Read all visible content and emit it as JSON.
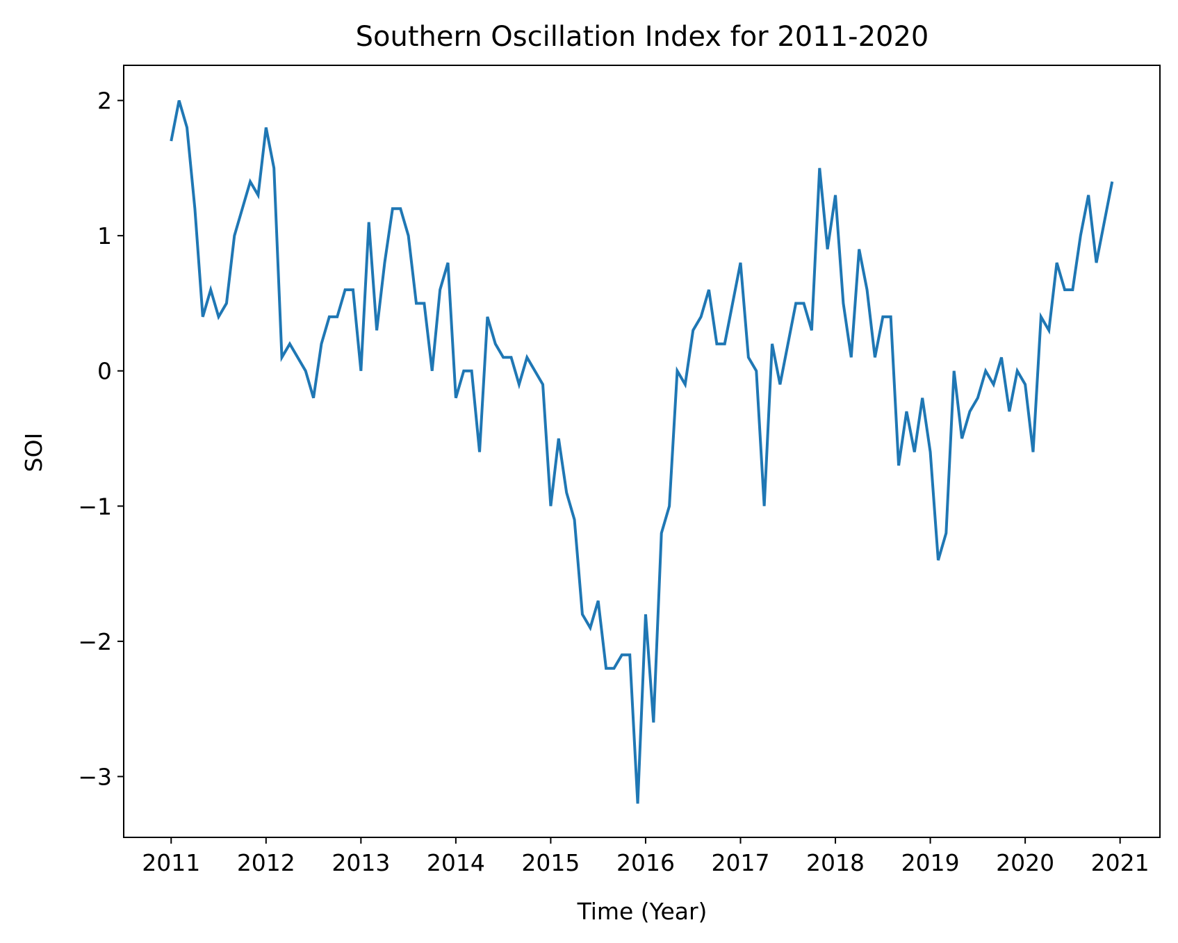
{
  "chart_data": {
    "type": "line",
    "title": "Southern Oscillation Index for 2011-2020",
    "xlabel": "Time (Year)",
    "ylabel": "SOI",
    "x_ticks": [
      "2011",
      "2012",
      "2013",
      "2014",
      "2015",
      "2016",
      "2017",
      "2018",
      "2019",
      "2020",
      "2021"
    ],
    "y_ticks": [
      "−3",
      "−2",
      "−1",
      "0",
      "1",
      "2"
    ],
    "xlim": [
      2010.5,
      2021.42
    ],
    "ylim": [
      -3.45,
      2.26
    ],
    "grid": false,
    "line_color": "#1f77b4",
    "series": [
      {
        "x": [
          "2011-01",
          "2011-02",
          "2011-03",
          "2011-04",
          "2011-05",
          "2011-06",
          "2011-07",
          "2011-08",
          "2011-09",
          "2011-10",
          "2011-11",
          "2011-12",
          "2012-01",
          "2012-02",
          "2012-03",
          "2012-04",
          "2012-05",
          "2012-06",
          "2012-07",
          "2012-08",
          "2012-09",
          "2012-10",
          "2012-11",
          "2012-12",
          "2013-01",
          "2013-02",
          "2013-03",
          "2013-04",
          "2013-05",
          "2013-06",
          "2013-07",
          "2013-08",
          "2013-09",
          "2013-10",
          "2013-11",
          "2013-12",
          "2014-01",
          "2014-02",
          "2014-03",
          "2014-04",
          "2014-05",
          "2014-06",
          "2014-07",
          "2014-08",
          "2014-09",
          "2014-10",
          "2014-11",
          "2014-12",
          "2015-01",
          "2015-02",
          "2015-03",
          "2015-04",
          "2015-05",
          "2015-06",
          "2015-07",
          "2015-08",
          "2015-09",
          "2015-10",
          "2015-11",
          "2015-12",
          "2016-01",
          "2016-02",
          "2016-03",
          "2016-04",
          "2016-05",
          "2016-06",
          "2016-07",
          "2016-08",
          "2016-09",
          "2016-10",
          "2016-11",
          "2016-12",
          "2017-01",
          "2017-02",
          "2017-03",
          "2017-04",
          "2017-05",
          "2017-06",
          "2017-07",
          "2017-08",
          "2017-09",
          "2017-10",
          "2017-11",
          "2017-12",
          "2018-01",
          "2018-02",
          "2018-03",
          "2018-04",
          "2018-05",
          "2018-06",
          "2018-07",
          "2018-08",
          "2018-09",
          "2018-10",
          "2018-11",
          "2018-12",
          "2019-01",
          "2019-02",
          "2019-03",
          "2019-04",
          "2019-05",
          "2019-06",
          "2019-07",
          "2019-08",
          "2019-09",
          "2019-10",
          "2019-11",
          "2019-12",
          "2020-01",
          "2020-02",
          "2020-03",
          "2020-04",
          "2020-05",
          "2020-06",
          "2020-07",
          "2020-08",
          "2020-09",
          "2020-10",
          "2020-11",
          "2020-12"
        ],
        "values": [
          1.7,
          2.0,
          1.8,
          1.2,
          0.4,
          0.6,
          0.4,
          0.5,
          1.0,
          1.2,
          1.4,
          1.3,
          1.8,
          1.5,
          0.1,
          0.2,
          0.1,
          0.0,
          -0.2,
          0.2,
          0.4,
          0.4,
          0.6,
          0.6,
          0.0,
          1.1,
          0.3,
          0.8,
          1.2,
          1.2,
          1.0,
          0.5,
          0.5,
          0.0,
          0.6,
          0.8,
          -0.2,
          0.0,
          0.0,
          -0.6,
          0.4,
          0.2,
          0.1,
          0.1,
          -0.1,
          0.1,
          0.0,
          -0.1,
          -1.0,
          -0.5,
          -0.9,
          -1.1,
          -1.8,
          -1.9,
          -1.7,
          -2.2,
          -2.2,
          -2.1,
          -2.1,
          -3.2,
          -1.8,
          -2.6,
          -1.2,
          -1.0,
          0.0,
          -0.1,
          0.3,
          0.4,
          0.6,
          0.2,
          0.2,
          0.5,
          0.8,
          0.1,
          0.0,
          -1.0,
          0.2,
          -0.1,
          0.2,
          0.5,
          0.5,
          0.3,
          1.5,
          0.9,
          1.3,
          0.5,
          0.1,
          0.9,
          0.6,
          0.1,
          0.4,
          0.4,
          -0.7,
          -0.3,
          -0.6,
          -0.2,
          -0.6,
          -1.4,
          -1.2,
          0.0,
          -0.5,
          -0.3,
          -0.2,
          0.0,
          -0.1,
          0.1,
          -0.3,
          0.0,
          -0.1,
          -0.6,
          0.4,
          0.3,
          0.8,
          0.6,
          0.6,
          1.0,
          1.3,
          0.8,
          1.1,
          1.4
        ]
      }
    ]
  }
}
